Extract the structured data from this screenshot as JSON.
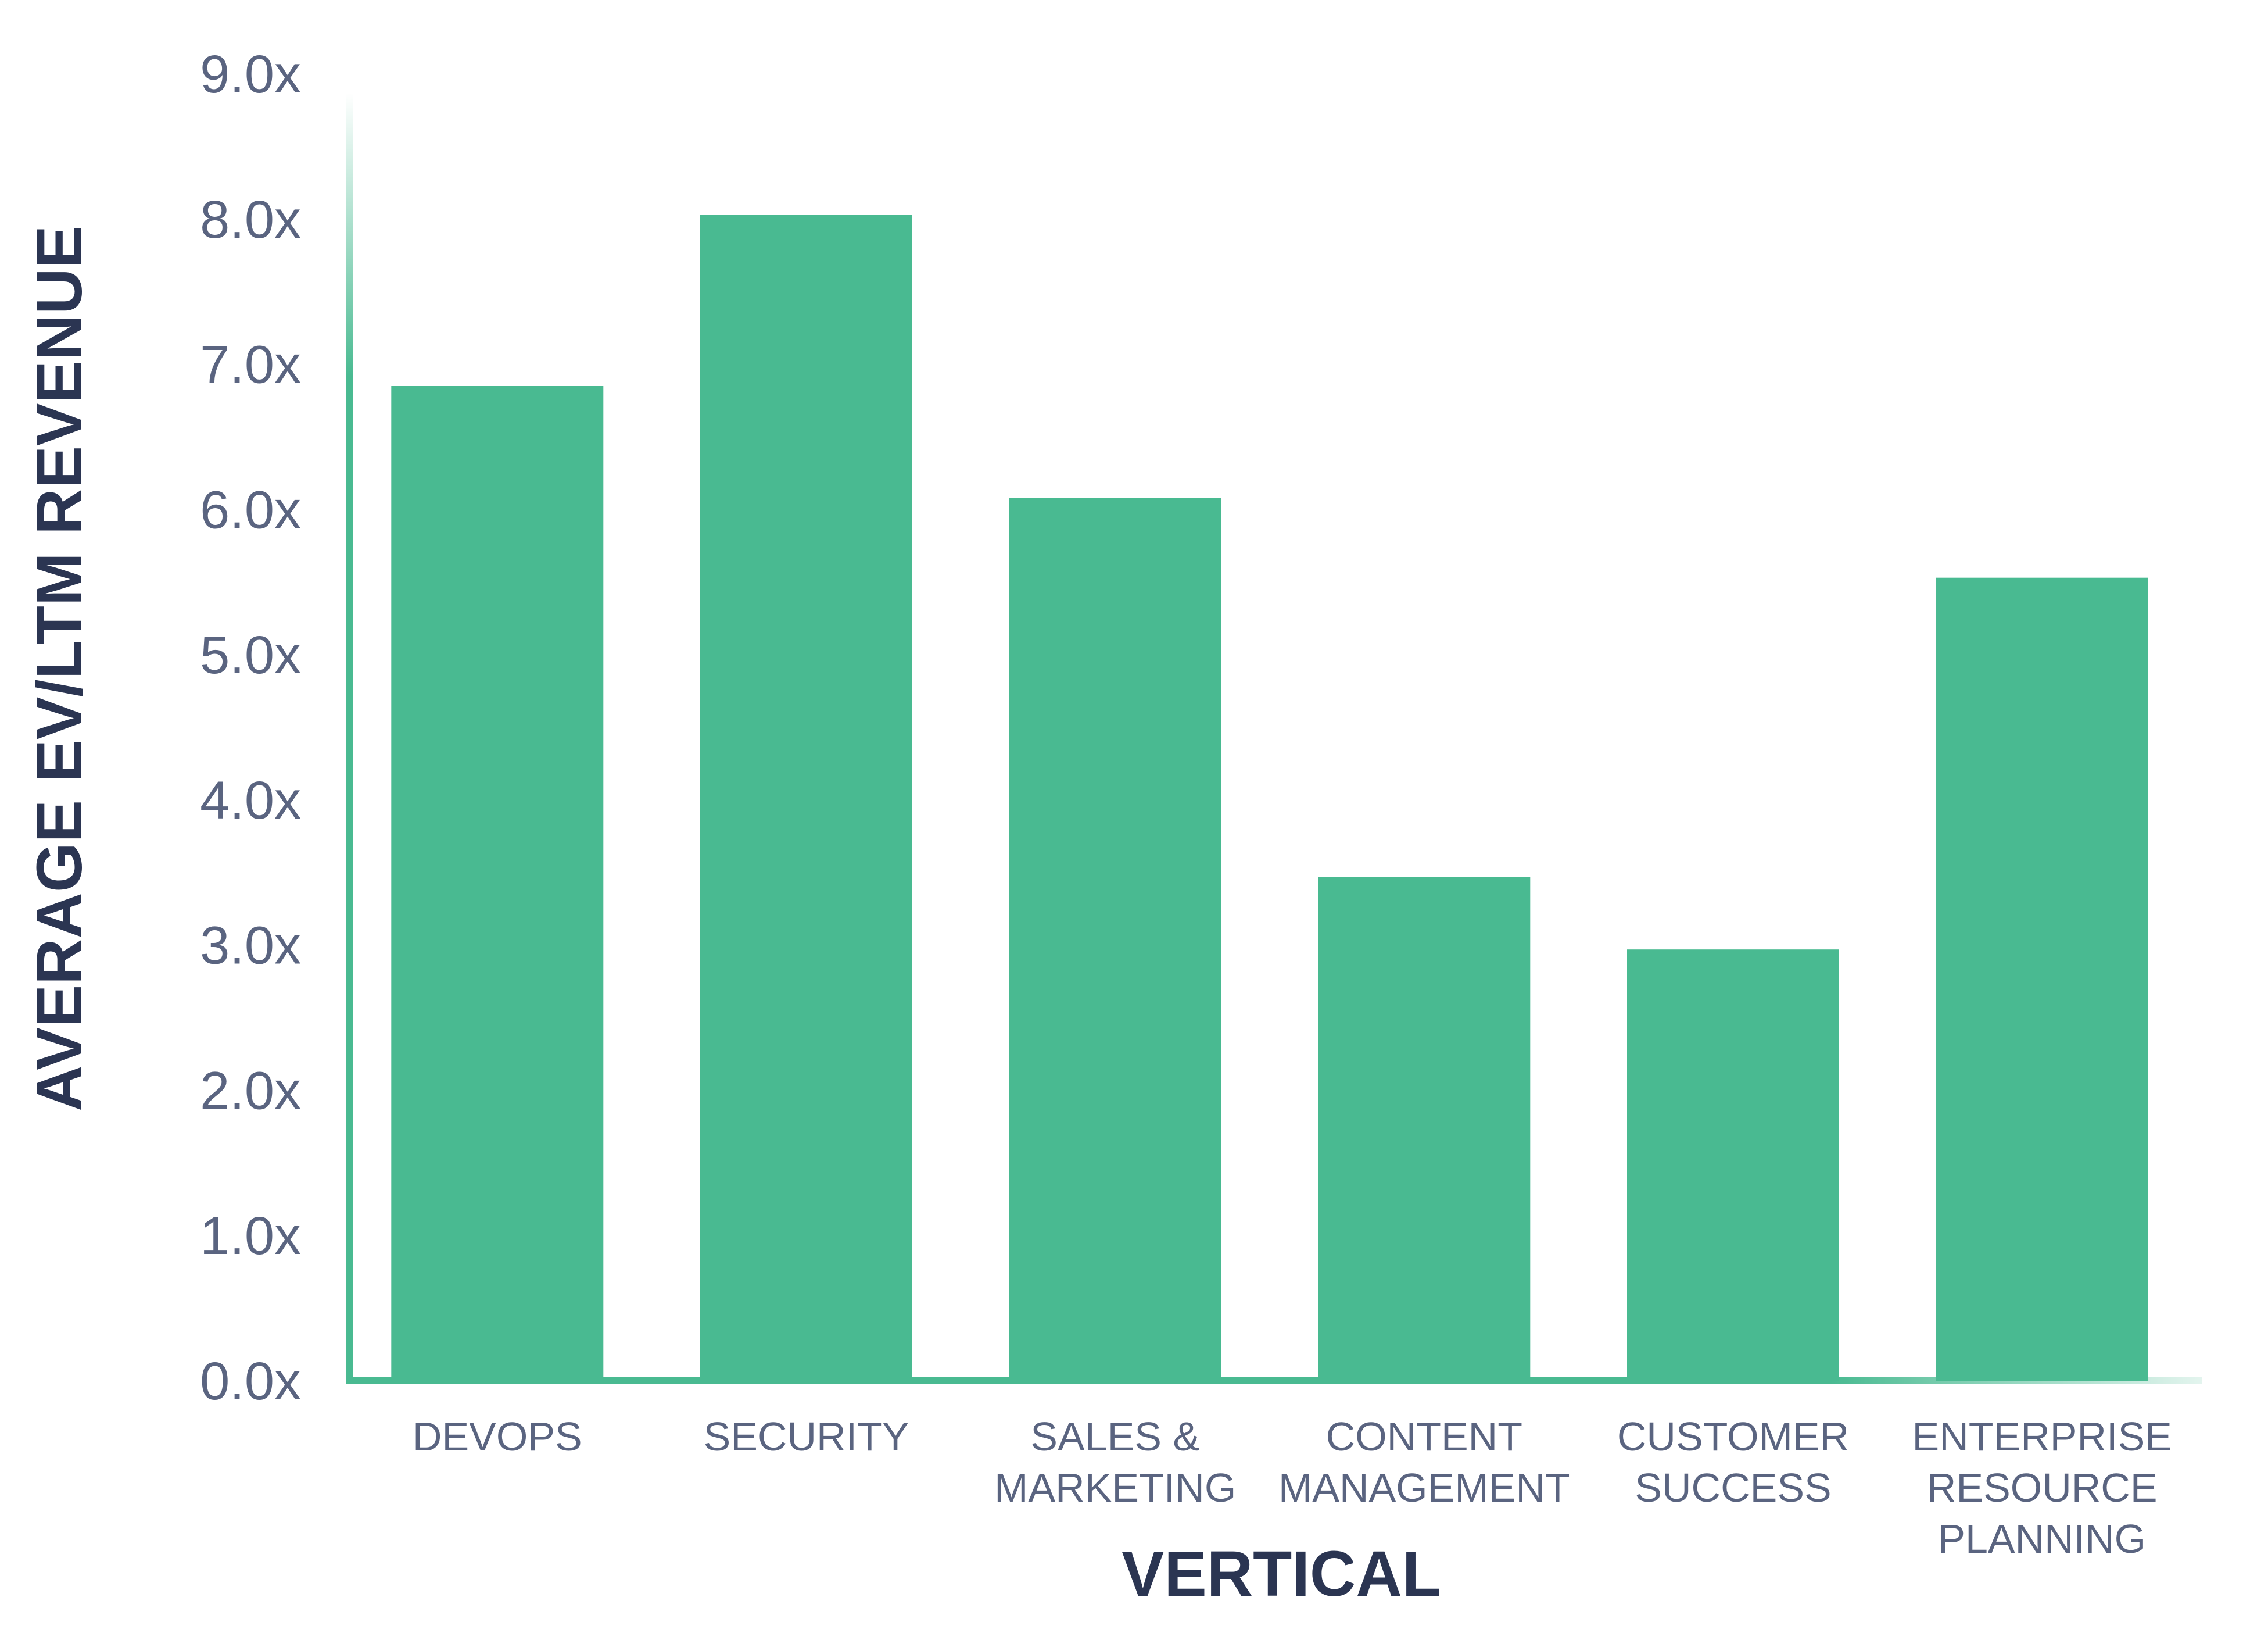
{
  "chart_data": {
    "type": "bar",
    "title": "",
    "xlabel": "VERTICAL",
    "ylabel": "AVERAGE EV/LTM REVENUE",
    "categories": [
      [
        "DEVOPS"
      ],
      [
        "SECURITY"
      ],
      [
        "SALES &",
        "MARKETING"
      ],
      [
        "CONTENT",
        "MANAGEMENT"
      ],
      [
        "CUSTOMER",
        "SUCCESS"
      ],
      [
        "ENTERPRISE",
        "RESOURCE",
        "PLANNING"
      ]
    ],
    "values": [
      6.85,
      8.03,
      6.08,
      3.47,
      2.97,
      5.53
    ],
    "ylim": [
      0,
      9
    ],
    "yticks": [
      "0.0x",
      "1.0x",
      "2.0x",
      "3.0x",
      "4.0x",
      "5.0x",
      "6.0x",
      "7.0x",
      "8.0x",
      "9.0x"
    ],
    "grid": false,
    "colors": {
      "bar": "#49BA91",
      "axis": "#49BA91",
      "tick_text": "#5a6480",
      "axis_title": "#2b3552"
    }
  }
}
